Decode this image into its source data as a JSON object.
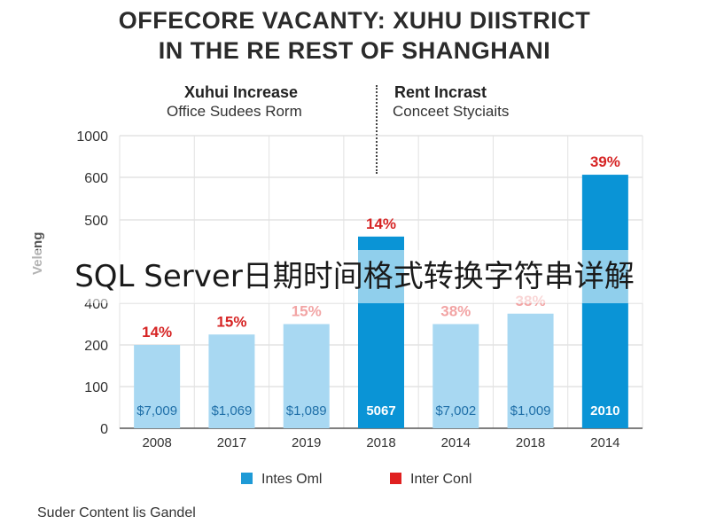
{
  "title_line1": "OFFECORE VACANTY: XUHU DIISTRICT",
  "title_line2": "IN THE RE REST OF SHANGHANI",
  "left_subtitle_heading": "Xuhui Increase",
  "left_subtitle_text": "Office Sudees Rorm",
  "right_subtitle_heading": "Rent Incrast",
  "right_subtitle_text": "Conceet Styciaits",
  "y_axis_label": "Veleng",
  "footer": "Suder Content lis Gandel",
  "overlay_banner": "SQL Server日期时间格式转换字符串详解",
  "colors": {
    "light_bar": "#a8d8f2",
    "dark_bar": "#0a94d6",
    "pct_red": "#d62424",
    "pct_pink": "#f2a4a4"
  },
  "chart_data": {
    "type": "bar",
    "categories": [
      "2008",
      "2017",
      "2019",
      "2018",
      "2014",
      "2018",
      "2014"
    ],
    "y_tick_labels": [
      "0",
      "100",
      "200",
      "400",
      "500",
      "600",
      "1000"
    ],
    "values": [
      200,
      250,
      300,
      480,
      300,
      350,
      625
    ],
    "bar_styles": [
      "light",
      "light",
      "light",
      "dark",
      "light",
      "light",
      "dark"
    ],
    "percent_labels": [
      "14%",
      "15%",
      "15%",
      "14%",
      "38%",
      "38%",
      "39%"
    ],
    "percent_styles": [
      "red",
      "red",
      "pink",
      "red",
      "pink",
      "pink",
      "red"
    ],
    "value_labels": [
      "$7,009",
      "$1,069",
      "$1,089",
      "5067",
      "$7,002",
      "$1,009",
      "2010"
    ],
    "legend": [
      {
        "label": "Intes Oml",
        "color": "#1e9ad6"
      },
      {
        "label": "Inter Conl",
        "color": "#e02020"
      }
    ],
    "ylabel": "Veleng",
    "grid": true,
    "legend_position": "bottom"
  }
}
